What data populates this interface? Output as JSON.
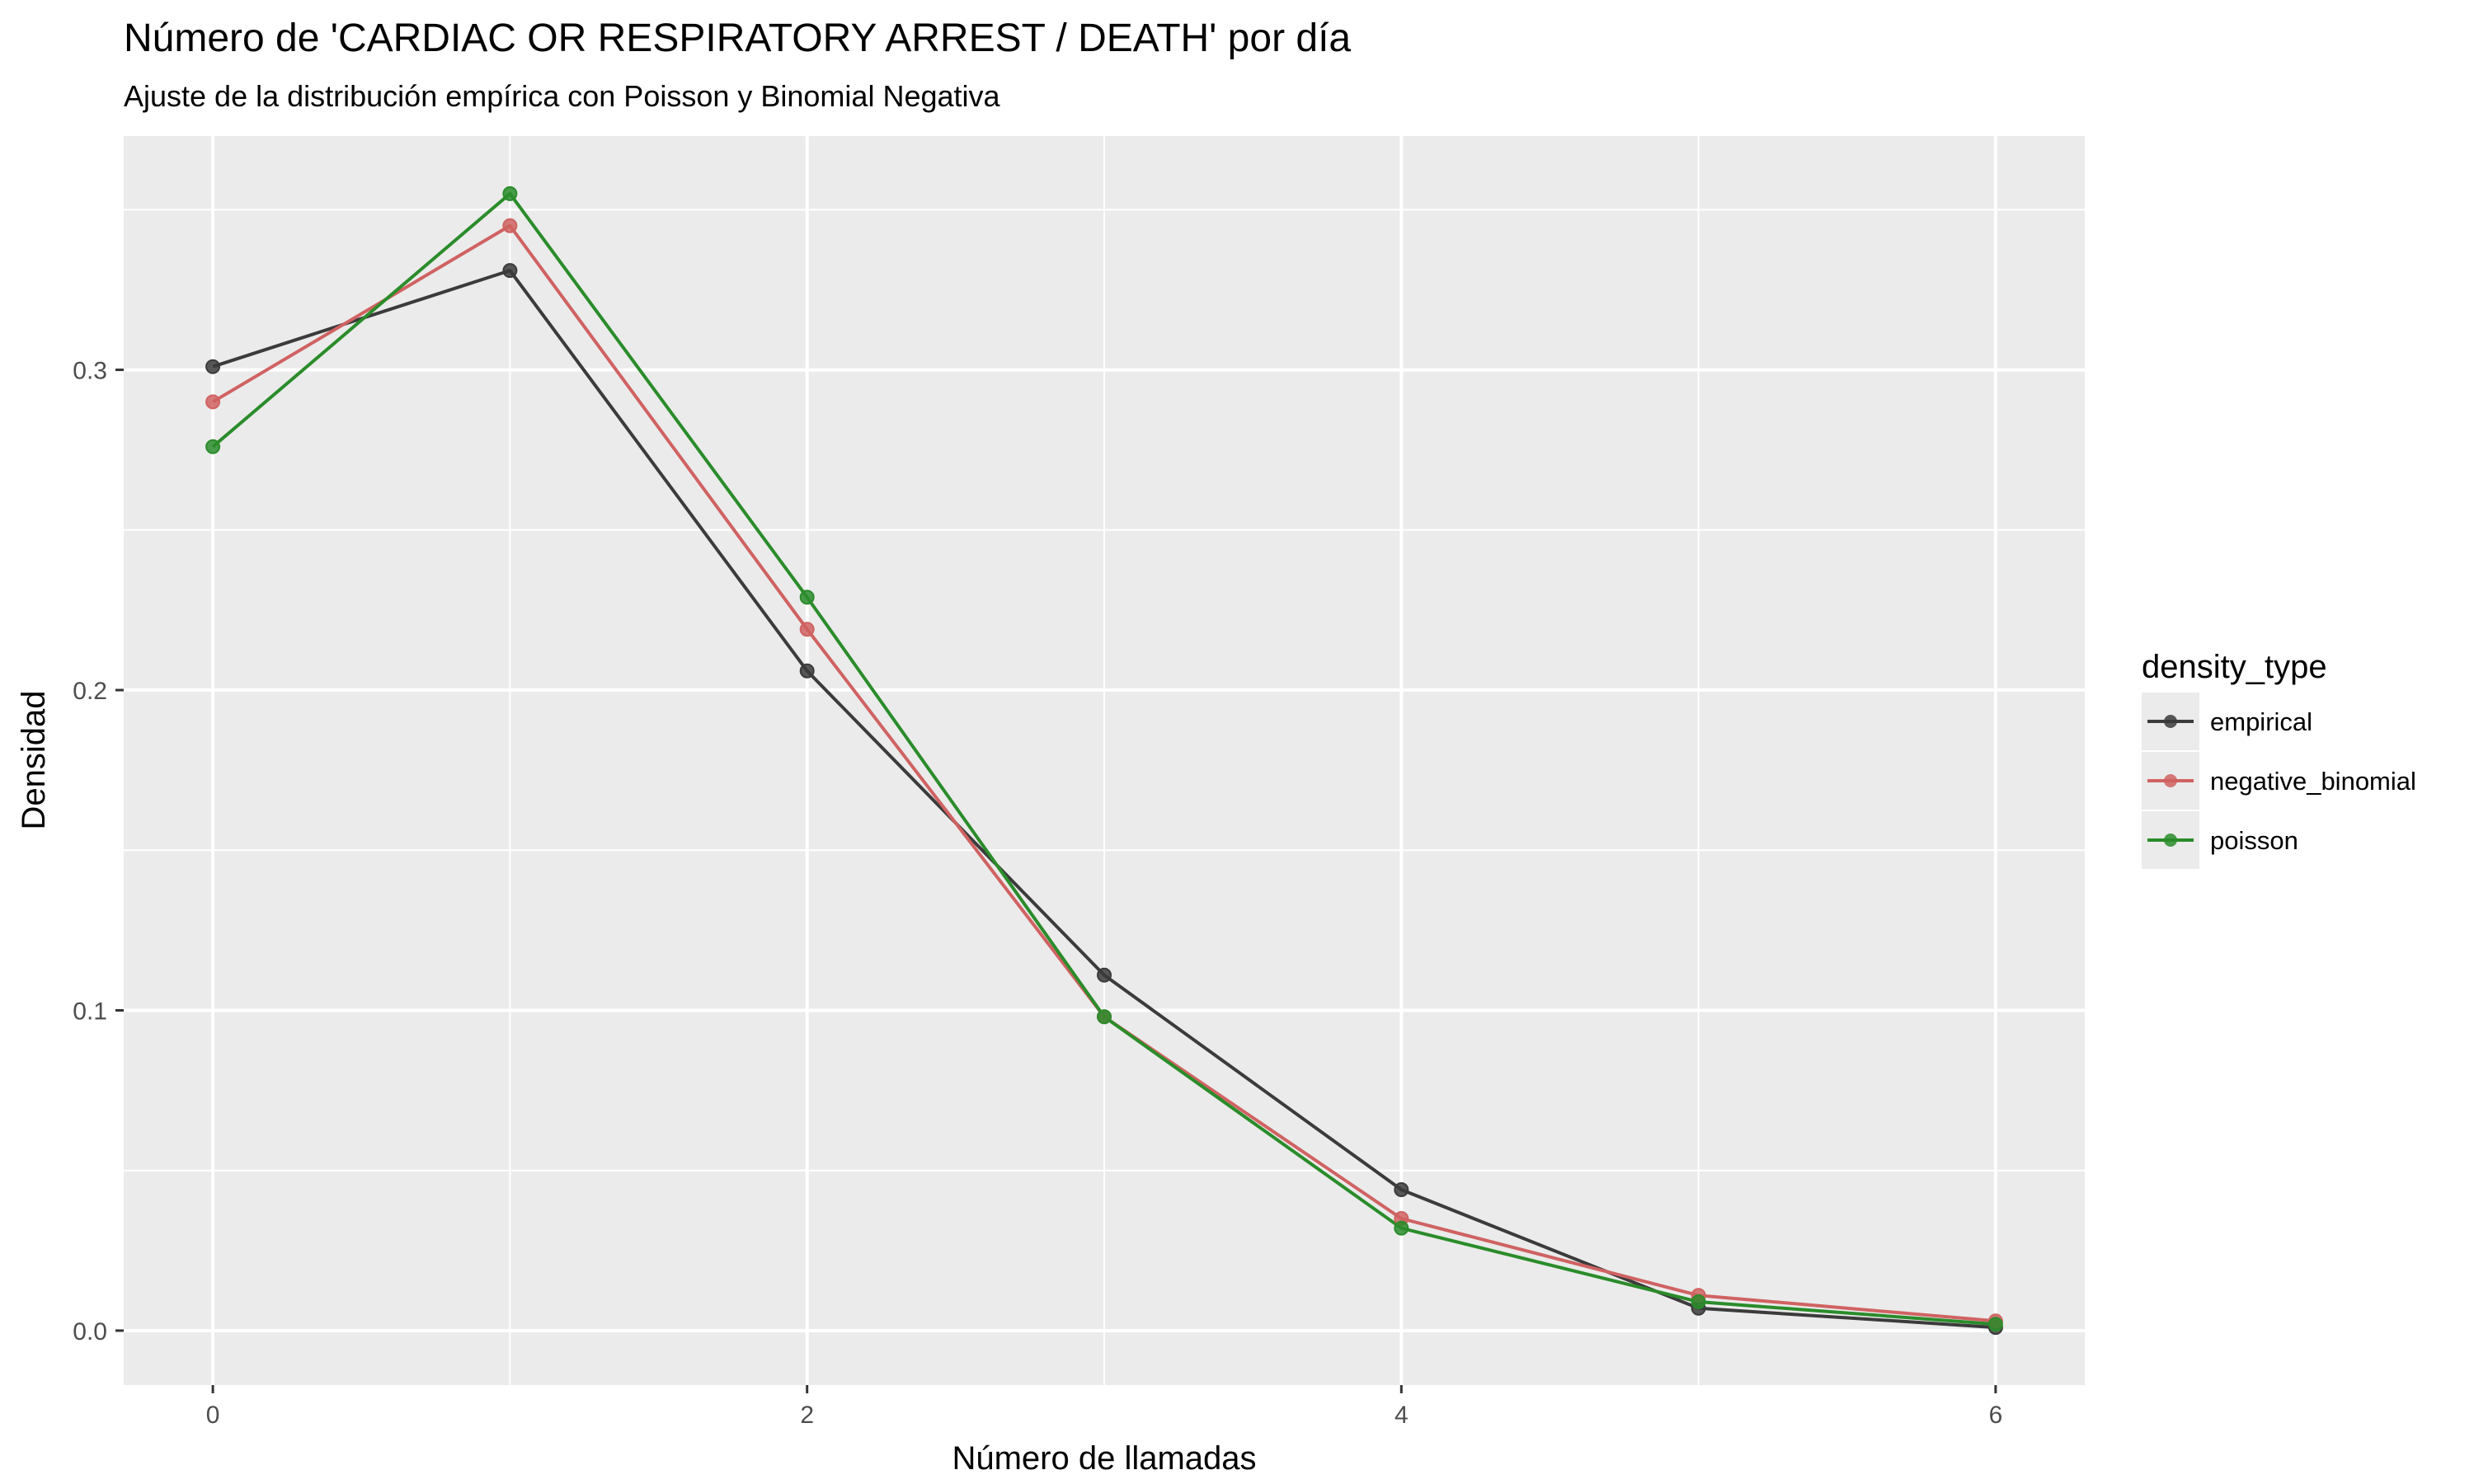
{
  "chart_data": {
    "type": "line",
    "title": "Número de 'CARDIAC OR RESPIRATORY ARREST / DEATH' por día",
    "subtitle": "Ajuste de la distribución empírica con Poisson y Binomial Negativa",
    "xlabel": "Número de llamadas",
    "ylabel": "Densidad",
    "x": [
      0,
      1,
      2,
      3,
      4,
      5,
      6
    ],
    "xlim": [
      -0.3,
      6.3
    ],
    "ylim": [
      -0.017,
      0.373
    ],
    "x_ticks": [
      "0",
      "2",
      "4",
      "6"
    ],
    "x_tick_values": [
      0,
      2,
      4,
      6
    ],
    "y_ticks": [
      "0.0",
      "0.1",
      "0.2",
      "0.3"
    ],
    "y_tick_values": [
      0.0,
      0.1,
      0.2,
      0.3
    ],
    "grid": true,
    "legend_title": "density_type",
    "legend_position": "right",
    "series": [
      {
        "name": "empirical",
        "color": "#3b3b3b",
        "values": [
          0.301,
          0.331,
          0.206,
          0.111,
          0.044,
          0.007,
          0.001
        ]
      },
      {
        "name": "negative_binomial",
        "color": "#d06262",
        "values": [
          0.29,
          0.345,
          0.219,
          0.098,
          0.035,
          0.011,
          0.003
        ]
      },
      {
        "name": "poisson",
        "color": "#2a8c2a",
        "values": [
          0.276,
          0.355,
          0.229,
          0.098,
          0.032,
          0.009,
          0.002
        ]
      }
    ]
  }
}
